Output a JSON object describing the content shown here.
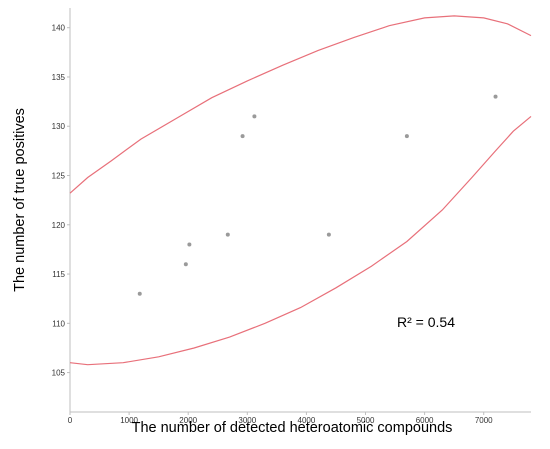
{
  "chart_data": {
    "type": "scatter",
    "title": "",
    "xlabel": "The number of detected heteroatomic compounds",
    "ylabel": "The number of true positives",
    "xlim": [
      0,
      7800
    ],
    "ylim": [
      101,
      142
    ],
    "x_ticks": [
      0,
      1000,
      2000,
      3000,
      4000,
      5000,
      6000,
      7000
    ],
    "y_ticks": [
      105,
      110,
      115,
      120,
      125,
      130,
      135,
      140
    ],
    "grid": false,
    "legend": "none",
    "points": [
      {
        "x": 1180,
        "y": 113
      },
      {
        "x": 1960,
        "y": 116
      },
      {
        "x": 2020,
        "y": 118
      },
      {
        "x": 2670,
        "y": 119
      },
      {
        "x": 2920,
        "y": 129
      },
      {
        "x": 3120,
        "y": 131
      },
      {
        "x": 4380,
        "y": 119
      },
      {
        "x": 5700,
        "y": 129
      },
      {
        "x": 7200,
        "y": 133
      }
    ],
    "ellipse_upper": [
      [
        0,
        123.2
      ],
      [
        300,
        124.8
      ],
      [
        700,
        126.5
      ],
      [
        1200,
        128.7
      ],
      [
        1800,
        130.8
      ],
      [
        2400,
        132.9
      ],
      [
        3000,
        134.6
      ],
      [
        3600,
        136.2
      ],
      [
        4200,
        137.7
      ],
      [
        4800,
        139.0
      ],
      [
        5400,
        140.2
      ],
      [
        6000,
        141.0
      ],
      [
        6500,
        141.2
      ],
      [
        7000,
        141.0
      ],
      [
        7400,
        140.4
      ],
      [
        7800,
        139.2
      ]
    ],
    "ellipse_lower": [
      [
        0,
        106.0
      ],
      [
        300,
        105.8
      ],
      [
        900,
        106.0
      ],
      [
        1500,
        106.6
      ],
      [
        2100,
        107.5
      ],
      [
        2700,
        108.6
      ],
      [
        3300,
        110.0
      ],
      [
        3900,
        111.6
      ],
      [
        4500,
        113.6
      ],
      [
        5100,
        115.8
      ],
      [
        5700,
        118.3
      ],
      [
        6300,
        121.5
      ],
      [
        6800,
        124.8
      ],
      [
        7200,
        127.5
      ],
      [
        7500,
        129.5
      ],
      [
        7800,
        131.0
      ]
    ],
    "annotation": "R² = 0.54",
    "colors": {
      "points": "#9a9a9a",
      "ellipse": "#e8707a",
      "axis": "#bfbfbf"
    }
  }
}
